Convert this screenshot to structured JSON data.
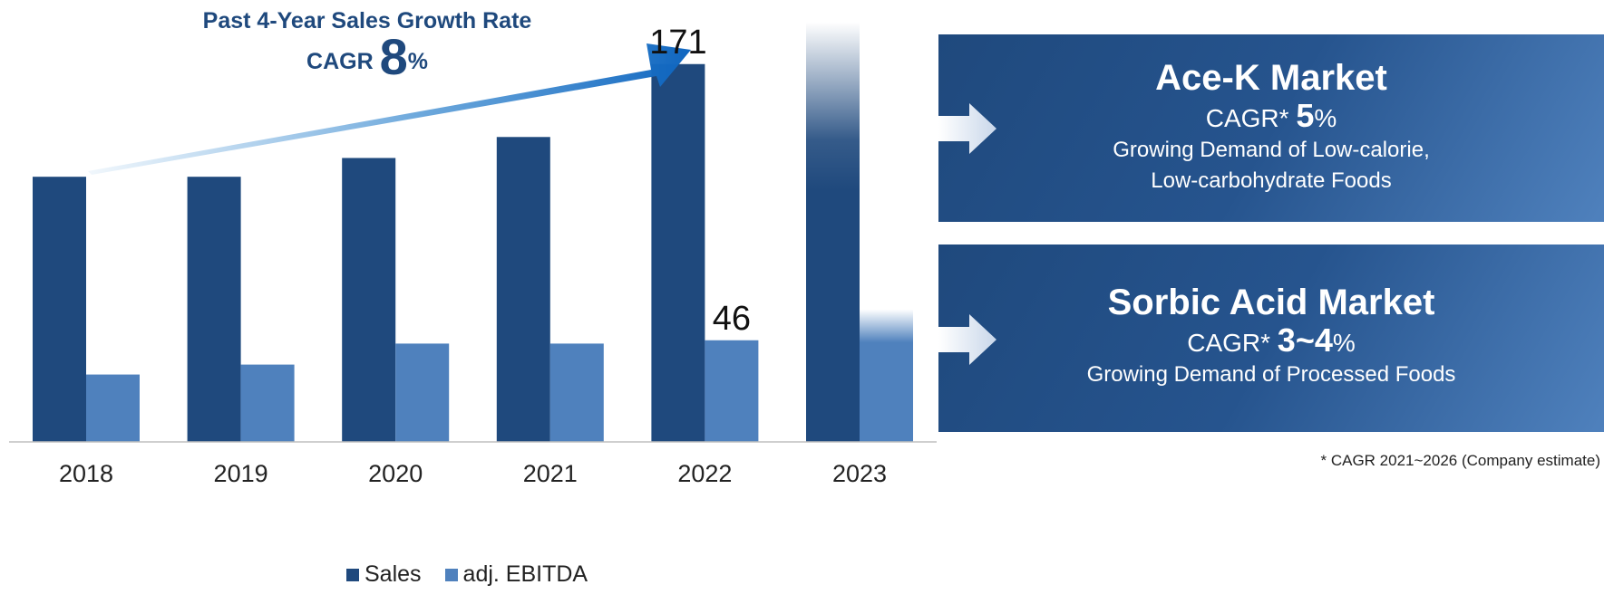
{
  "chart_data": {
    "type": "bar",
    "categories": [
      "2018",
      "2019",
      "2020",
      "2021",
      "2022",
      "2023"
    ],
    "series": [
      {
        "name": "Sales",
        "values": [
          120,
          120,
          128.5,
          138,
          171,
          190
        ],
        "color": "#1f497d"
      },
      {
        "name": "adj. EBITDA",
        "values": [
          30.5,
          35,
          44.5,
          44.5,
          46,
          60
        ],
        "color": "#4f81bd"
      }
    ],
    "data_labels": [
      {
        "series": "Sales",
        "category": "2022",
        "text": "171"
      },
      {
        "series": "adj. EBITDA",
        "category": "2022",
        "text": "46"
      }
    ],
    "faded_category": "2023",
    "ylim": [
      0,
      200
    ],
    "grid": false,
    "legend": "bottom-center",
    "annotation": {
      "title": "Past 4-Year Sales Growth Rate",
      "cagr_prefix": "CAGR",
      "cagr_value": "8",
      "cagr_suffix": "%"
    }
  },
  "panels": [
    {
      "title": "Ace-K Market",
      "cagr_prefix": "CAGR*",
      "cagr_value": "5",
      "cagr_suffix": "%",
      "desc_line1": "Growing Demand of Low-calorie,",
      "desc_line2": "Low-carbohydrate Foods"
    },
    {
      "title": "Sorbic Acid Market",
      "cagr_prefix": "CAGR*",
      "cagr_value": "3~4",
      "cagr_suffix": "%",
      "desc_line1": "Growing Demand of Processed Foods"
    }
  ],
  "footnote": "* CAGR  2021~2026 (Company estimate)"
}
